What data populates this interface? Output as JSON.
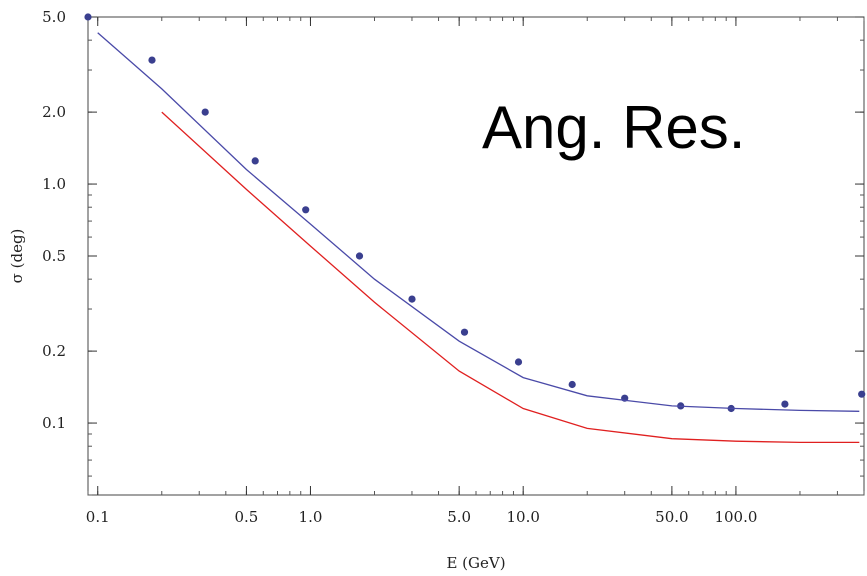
{
  "chart_data": {
    "type": "scatter",
    "x_scale": "log",
    "y_scale": "log",
    "xlim": [
      0.09,
      400
    ],
    "ylim": [
      0.05,
      5.0
    ],
    "xlabel": "E (GeV)",
    "ylabel": "σ (deg)",
    "annotation": "Ang. Res.",
    "grid": false,
    "x_ticks": [
      {
        "value": 0.1,
        "label": "0.1"
      },
      {
        "value": 0.5,
        "label": "0.5"
      },
      {
        "value": 1.0,
        "label": "1.0"
      },
      {
        "value": 5.0,
        "label": "5.0"
      },
      {
        "value": 10.0,
        "label": "10.0"
      },
      {
        "value": 50.0,
        "label": "50.0"
      },
      {
        "value": 100.0,
        "label": "100.0"
      }
    ],
    "y_ticks": [
      {
        "value": 0.1,
        "label": "0.1"
      },
      {
        "value": 0.2,
        "label": "0.2"
      },
      {
        "value": 0.5,
        "label": "0.5"
      },
      {
        "value": 1.0,
        "label": "1.0"
      },
      {
        "value": 2.0,
        "label": "2.0"
      },
      {
        "value": 5.0,
        "label": "5.0"
      }
    ],
    "series": [
      {
        "kind": "points",
        "color": "#3a3f8f",
        "x": [
          0.09,
          0.18,
          0.32,
          0.55,
          0.95,
          1.7,
          3.0,
          5.3,
          9.5,
          17,
          30,
          55,
          95,
          170,
          390
        ],
        "y": [
          5.0,
          3.3,
          2.0,
          1.25,
          0.78,
          0.5,
          0.33,
          0.24,
          0.18,
          0.145,
          0.127,
          0.118,
          0.115,
          0.12,
          0.132
        ]
      },
      {
        "kind": "line",
        "color": "#4a4aa8",
        "x": [
          0.1,
          0.2,
          0.5,
          1.0,
          2.0,
          5.0,
          10,
          20,
          50,
          100,
          200,
          380
        ],
        "y": [
          4.3,
          2.5,
          1.15,
          0.68,
          0.4,
          0.22,
          0.155,
          0.13,
          0.118,
          0.115,
          0.113,
          0.112
        ]
      },
      {
        "kind": "line",
        "color": "#e02020",
        "x": [
          0.2,
          0.5,
          1.0,
          2.0,
          5.0,
          10,
          20,
          50,
          100,
          200,
          380
        ],
        "y": [
          2.0,
          0.95,
          0.55,
          0.32,
          0.165,
          0.115,
          0.095,
          0.086,
          0.084,
          0.083,
          0.083
        ]
      }
    ]
  }
}
